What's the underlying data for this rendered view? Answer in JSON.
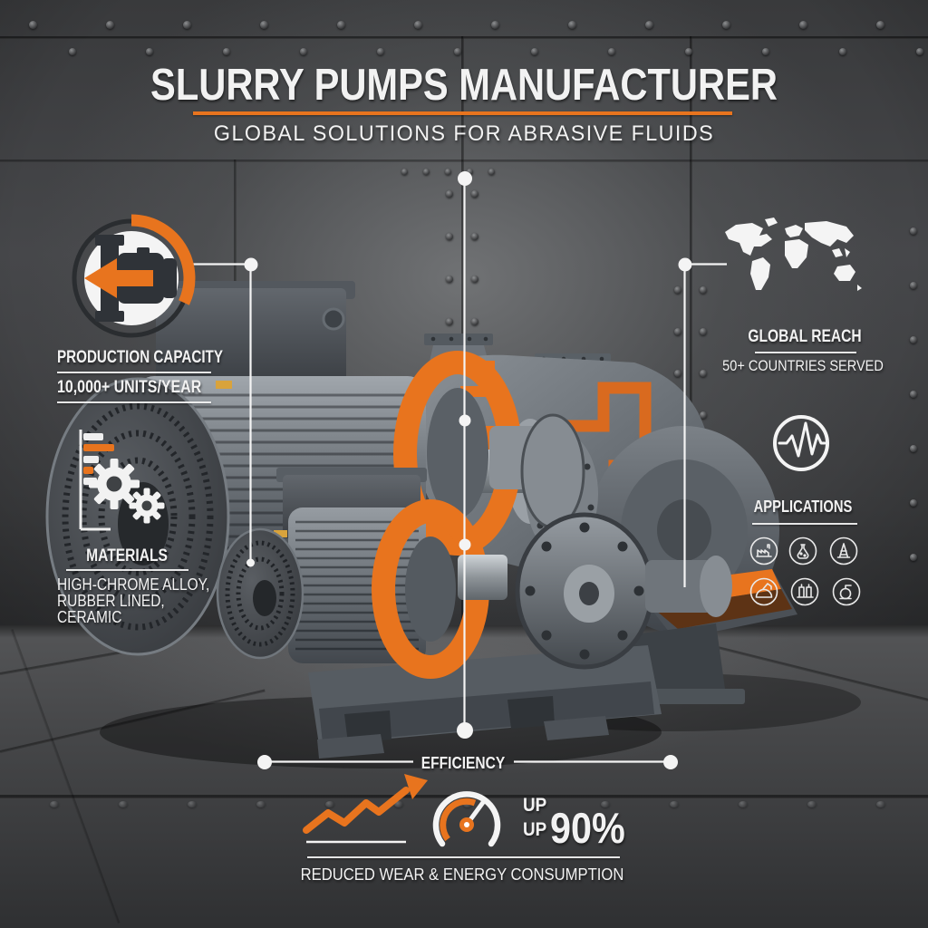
{
  "poster": {
    "title": "SLURRY PUMPS MANUFACTURER",
    "subtitle": "GLOBAL SOLUTIONS FOR ABRASIVE FLUIDS"
  },
  "production": {
    "label": "PRODUCTION CAPACITY",
    "value": "10,000+ UNITS/YEAR"
  },
  "materials": {
    "label": "MATERIALS",
    "lines": [
      "HIGH-CHROME ALLOY,",
      "RUBBER LINED,",
      "CERAMIC"
    ]
  },
  "global_reach": {
    "label": "GLOBAL REACH",
    "value": "50+ COUNTRIES SERVED"
  },
  "applications": {
    "label": "APPLICATIONS",
    "icons": [
      "mining",
      "chemical-processing",
      "oil-gas",
      "dredging",
      "power-plant",
      "water-treatment"
    ]
  },
  "efficiency": {
    "label": "EFFICIENCY",
    "up1": "UP",
    "up2": "UP",
    "value": "90%",
    "footer": "REDUCED WEAR & ENERGY CONSUMPTION"
  },
  "colors": {
    "accent": "#E8741E",
    "accent_dark": "#C45A15",
    "text": "#F2F2F2"
  }
}
